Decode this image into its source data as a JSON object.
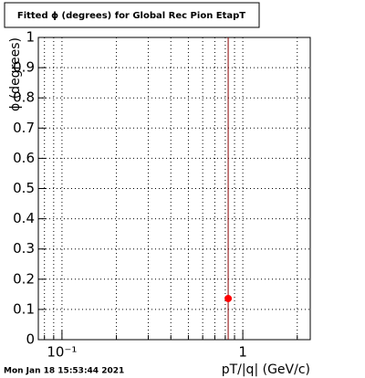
{
  "chart_data": {
    "type": "scatter",
    "title": "Fitted ϕ (degrees) for Global Rec Pion EtapT",
    "x_label": "pT/|q| (GeV/c)",
    "y_label": "ϕ (degrees)",
    "timestamp": "Mon Jan 18 15:53:44 2021",
    "x": [
      0.83
    ],
    "values": [
      0.136
    ],
    "errors": [
      0.9
    ],
    "color": "#ff0000",
    "error_color": "#8b0000",
    "xlim": [
      0.074,
      2.36
    ],
    "log_x": true,
    "xticks": [
      {
        "value": 0.1,
        "label": "10⁻¹"
      },
      1
    ],
    "xminor": [
      0.08,
      0.09,
      0.2,
      0.3,
      0.4,
      0.5,
      0.6,
      0.7,
      0.8,
      0.9,
      2
    ],
    "ylim": [
      0,
      1
    ],
    "yticks": [
      0,
      0.1,
      0.2,
      0.3,
      0.4,
      0.5,
      0.6,
      0.7,
      0.8,
      0.9,
      1
    ],
    "grid": true
  }
}
